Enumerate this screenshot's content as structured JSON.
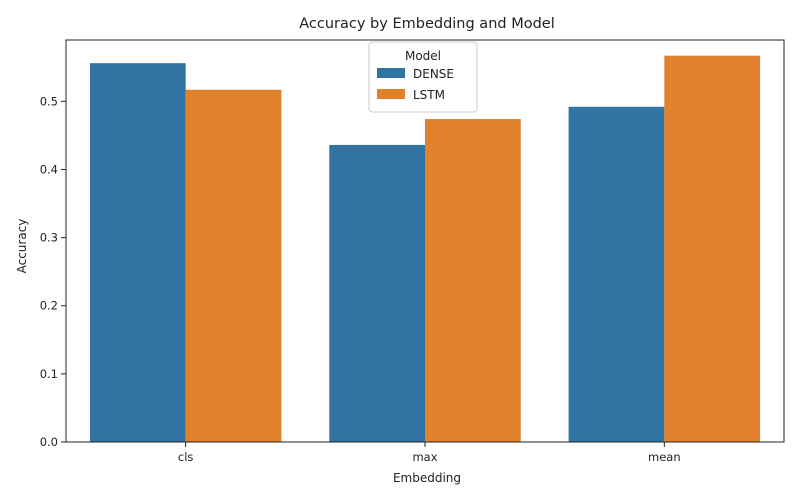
{
  "chart_data": {
    "type": "bar",
    "title": "Accuracy by Embedding and Model",
    "xlabel": "Embedding",
    "ylabel": "Accuracy",
    "categories": [
      "cls",
      "max",
      "mean"
    ],
    "series": [
      {
        "name": "DENSE",
        "color": "#3274a1",
        "values": [
          0.556,
          0.436,
          0.492
        ]
      },
      {
        "name": "LSTM",
        "color": "#e1812c",
        "values": [
          0.517,
          0.474,
          0.567
        ]
      }
    ],
    "ylim": [
      0,
      0.59
    ],
    "yticks": [
      "0.0",
      "0.1",
      "0.2",
      "0.3",
      "0.4",
      "0.5"
    ],
    "grid": false,
    "legend": {
      "title": "Model",
      "placement": "top-center"
    }
  }
}
